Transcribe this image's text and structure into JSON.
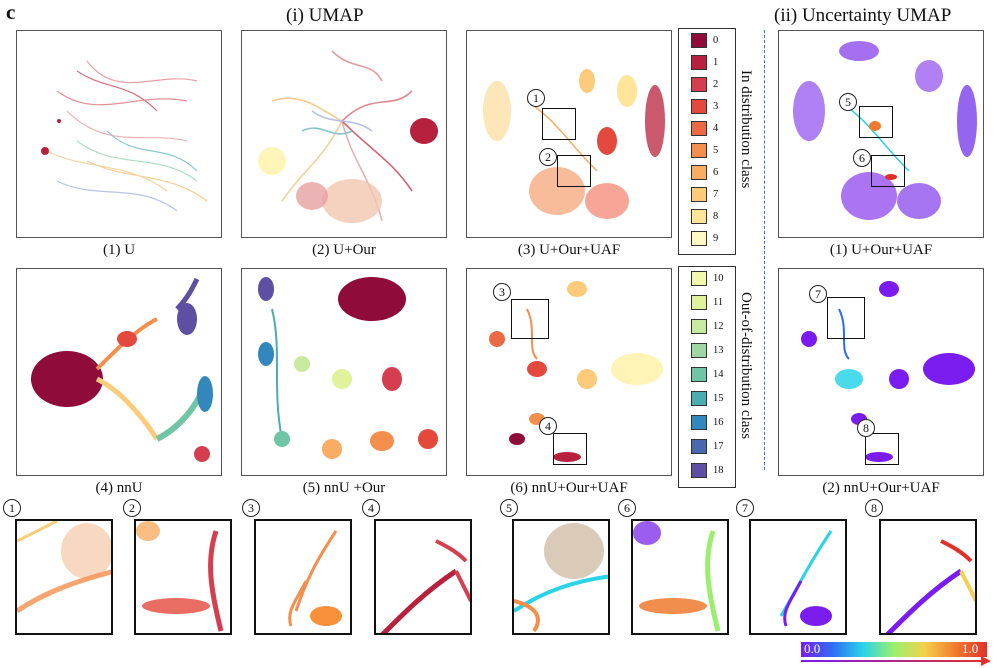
{
  "panel_letter": "c",
  "section_i_title": "(i) UMAP",
  "section_ii_title": "(ii) Uncertainty UMAP",
  "captions": {
    "c1": "(1) U",
    "c2": "(2) U+Our",
    "c3": "(3) U+Our+UAF",
    "c4": "(4) nnU",
    "c5": "(5) nnU +Our",
    "c6": "(6) nnU+Our+UAF",
    "u1": "(1) U+Our+UAF",
    "u2": "(2) nnU+Our+UAF"
  },
  "legend": {
    "in_distribution_title": "In distribution class",
    "out_of_distribution_title": "Out-of-distribution class",
    "in_classes": [
      {
        "label": "0",
        "color": "#8e0b3a"
      },
      {
        "label": "1",
        "color": "#b8213d"
      },
      {
        "label": "2",
        "color": "#d53e4f"
      },
      {
        "label": "3",
        "color": "#e3493c"
      },
      {
        "label": "4",
        "color": "#ea6a45"
      },
      {
        "label": "5",
        "color": "#f48e4c"
      },
      {
        "label": "6",
        "color": "#f9ac64"
      },
      {
        "label": "7",
        "color": "#fdcb7a"
      },
      {
        "label": "8",
        "color": "#fee59a"
      },
      {
        "label": "9",
        "color": "#fff9c4"
      }
    ],
    "out_classes": [
      {
        "label": "10",
        "color": "#f2f8ad"
      },
      {
        "label": "11",
        "color": "#e1f29c"
      },
      {
        "label": "12",
        "color": "#c7e9a0"
      },
      {
        "label": "13",
        "color": "#9fd7a4"
      },
      {
        "label": "14",
        "color": "#6fc5a5"
      },
      {
        "label": "15",
        "color": "#4aaeb0"
      },
      {
        "label": "16",
        "color": "#3288bd"
      },
      {
        "label": "17",
        "color": "#4a68ae"
      },
      {
        "label": "18",
        "color": "#5e4fa2"
      }
    ]
  },
  "markers": [
    "1",
    "2",
    "3",
    "4",
    "5",
    "6",
    "7",
    "8"
  ],
  "colorbar": {
    "min_label": "0.0",
    "max_label": "1.0",
    "stops": [
      "#7a1bf0",
      "#2f6cf5",
      "#29d3e8",
      "#9af06e",
      "#f5d04a",
      "#f07a2e",
      "#e1302a"
    ]
  }
}
